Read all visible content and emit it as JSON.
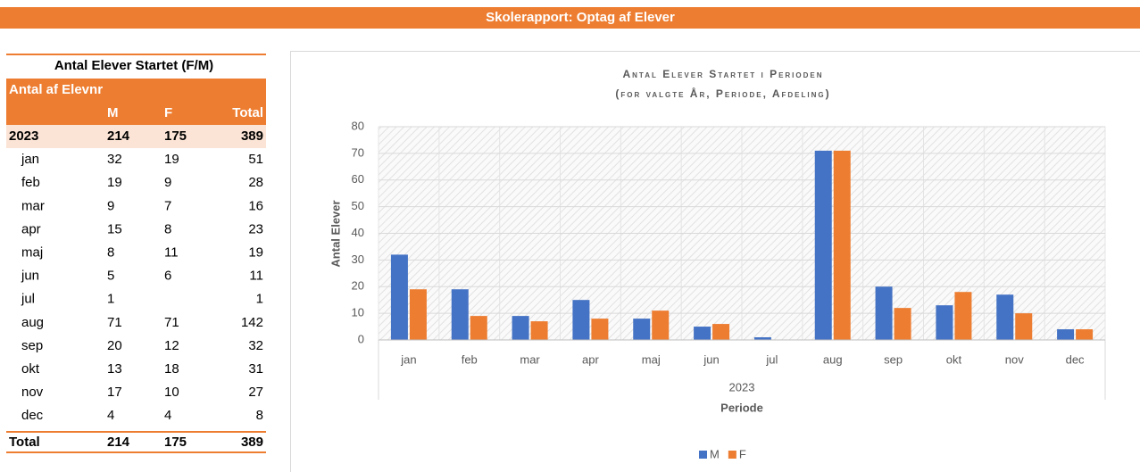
{
  "header": {
    "title": "Skolerapport: Optag af Elever"
  },
  "table": {
    "title": "Antal Elever Startet (F/M)",
    "field": "Antal af Elevnr",
    "columns": [
      "M",
      "F",
      "Total"
    ],
    "rows": [
      [
        "2023",
        214,
        175,
        389
      ],
      [
        "jan",
        32,
        19,
        51
      ],
      [
        "feb",
        19,
        9,
        28
      ],
      [
        "mar",
        9,
        7,
        16
      ],
      [
        "apr",
        15,
        8,
        23
      ],
      [
        "maj",
        8,
        11,
        19
      ],
      [
        "jun",
        5,
        6,
        11
      ],
      [
        "jul",
        1,
        null,
        1
      ],
      [
        "aug",
        71,
        71,
        142
      ],
      [
        "sep",
        20,
        12,
        32
      ],
      [
        "okt",
        13,
        18,
        31
      ],
      [
        "nov",
        17,
        10,
        27
      ],
      [
        "dec",
        4,
        4,
        8
      ]
    ],
    "total": [
      "Total",
      214,
      175,
      389
    ]
  },
  "chart_data": {
    "type": "bar",
    "title": "Antal Elever Startet i Perioden",
    "subtitle": "(for valgte År, Periode, Afdeling)",
    "y_label": "Antal Elever",
    "x_group": "2023",
    "x_label": "Periode",
    "categories": [
      "jan",
      "feb",
      "mar",
      "apr",
      "maj",
      "jun",
      "jul",
      "aug",
      "sep",
      "okt",
      "nov",
      "dec"
    ],
    "series": [
      {
        "name": "M",
        "color": "#4472c4",
        "values": [
          32,
          19,
          9,
          15,
          8,
          5,
          1,
          71,
          20,
          13,
          17,
          4
        ]
      },
      {
        "name": "F",
        "color": "#ed7d31",
        "values": [
          19,
          9,
          7,
          8,
          11,
          6,
          null,
          71,
          12,
          18,
          10,
          4
        ]
      }
    ],
    "ylim": [
      0,
      80
    ],
    "yticks": [
      0,
      10,
      20,
      30,
      40,
      50,
      60,
      70,
      80
    ],
    "grid": true,
    "legend": "bottom"
  }
}
